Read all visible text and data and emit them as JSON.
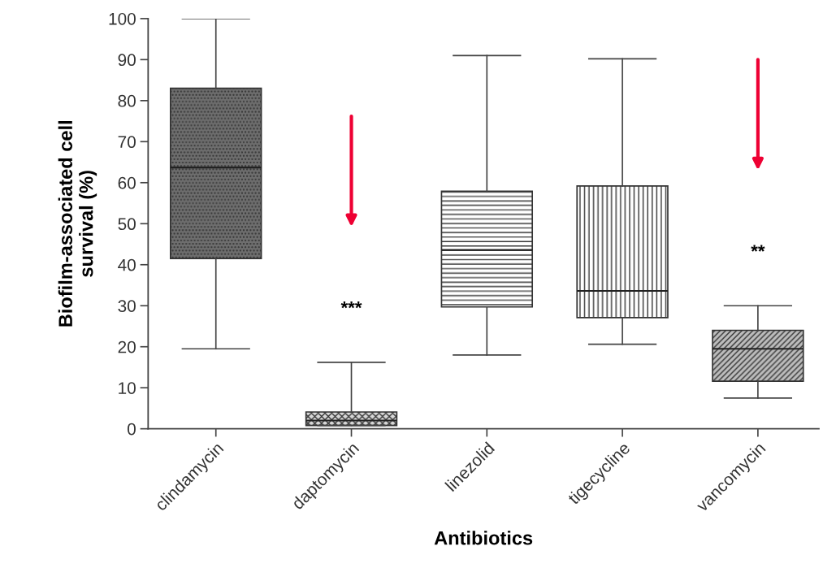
{
  "chart_data": {
    "type": "box",
    "xlabel": "Antibiotics",
    "ylabel": "Biofilm-associated cell\nsurvival (%)",
    "categories": [
      "clindamycin",
      "daptomycin",
      "linezolid",
      "tigecycline",
      "vancomycin"
    ],
    "boxes": [
      {
        "low": 19.5,
        "q1": 41.5,
        "median": 63.7,
        "q3": 83,
        "high": 100
      },
      {
        "low": 0.8,
        "q1": 0.8,
        "median": 2,
        "q3": 4.1,
        "high": 16.2
      },
      {
        "low": 18,
        "q1": 29.7,
        "median": 43.6,
        "q3": 57.9,
        "high": 91
      },
      {
        "low": 20.6,
        "q1": 27.1,
        "median": 33.6,
        "q3": 59.2,
        "high": 90.2
      },
      {
        "low": 7.5,
        "q1": 11.6,
        "median": 19.5,
        "q3": 24,
        "high": 30
      }
    ],
    "ylim": [
      0,
      100
    ],
    "yticks": [
      0,
      10,
      20,
      30,
      40,
      50,
      60,
      70,
      80,
      90,
      100
    ],
    "annotations": [
      "***",
      "**"
    ],
    "grid": false,
    "legend": false
  }
}
